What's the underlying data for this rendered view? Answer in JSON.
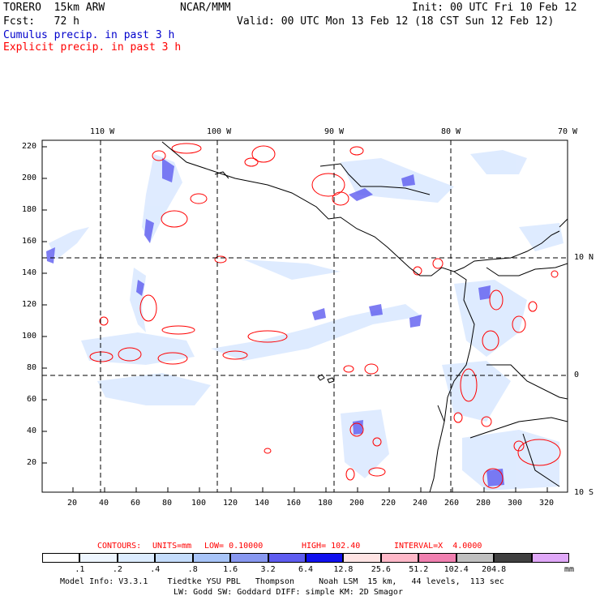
{
  "header": {
    "model": "TORERO  15km ARW",
    "org": "NCAR/MMM",
    "init": "Init: 00 UTC Fri 10 Feb 12",
    "fcst": "Fcst:   72 h",
    "valid": "Valid: 00 UTC Mon 13 Feb 12 (18 CST Sun 12 Feb 12)",
    "cumulus": "Cumulus precip. in past 3 h",
    "explicit": "Explicit precip. in past 3 h"
  },
  "map": {
    "top_lon_labels": [
      "110 W",
      "100 W",
      "90 W",
      "80 W",
      "70 W"
    ],
    "right_lat_labels": [
      "10 N",
      "0",
      "10 S"
    ],
    "left_ticks": [
      "220",
      "200",
      "180",
      "160",
      "140",
      "120",
      "100",
      "80",
      "60",
      "40",
      "20"
    ],
    "bottom_ticks": [
      "20",
      "40",
      "60",
      "80",
      "100",
      "120",
      "140",
      "160",
      "180",
      "200",
      "220",
      "240",
      "260",
      "280",
      "300",
      "320"
    ]
  },
  "contours": {
    "label": "CONTOURS:",
    "units": "UNITS=mm",
    "low": "LOW= 0.10000",
    "high": "HIGH= 102.40",
    "interval": "INTERVAL=X  4.0000"
  },
  "legend": {
    "colors": [
      "#ffffff",
      "#eef6ff",
      "#dcecff",
      "#c4dcfb",
      "#a8c4f8",
      "#8898f0",
      "#5e5cf0",
      "#1010ee",
      "#ffe4e4",
      "#ffb8c8",
      "#f080b0",
      "#c0c0c0",
      "#404040",
      "#e0a8f8"
    ],
    "labels": [
      ".1",
      ".2",
      ".4",
      ".8",
      "1.6",
      "3.2",
      "6.4",
      "12.8",
      "25.6",
      "51.2",
      "102.4",
      "204.8"
    ],
    "unit": "mm"
  },
  "footer": {
    "line1": "Model Info: V3.3.1    Tiedtke YSU PBL   Thompson     Noah LSM  15 km,   44 levels,  113 sec",
    "line2": "LW: Godd SW: Goddard DIFF: simple KM: 2D Smagor"
  }
}
